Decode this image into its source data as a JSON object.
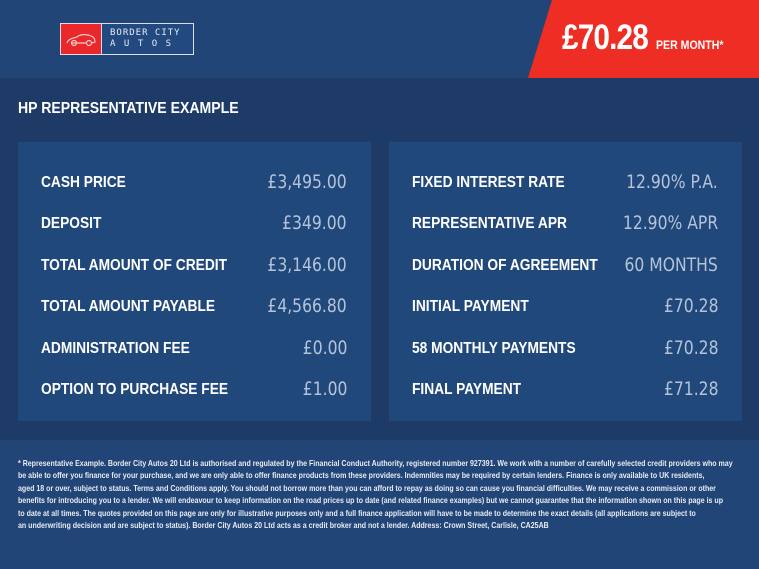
{
  "brand": {
    "line1": "BORDER CITY",
    "line2": "AUTOS",
    "logo_icon": "car-icon",
    "colors": {
      "red": "#e8282b",
      "blue": "#234a80"
    }
  },
  "headline": {
    "price": "£70.28",
    "suffix": "PER MONTH*",
    "color": "#ee2e24"
  },
  "section_title": "HP REPRESENTATIVE EXAMPLE",
  "left_panel": [
    {
      "label": "CASH PRICE",
      "value": "£3,495.00"
    },
    {
      "label": "DEPOSIT",
      "value": "£349.00"
    },
    {
      "label": "TOTAL AMOUNT OF CREDIT",
      "value": "£3,146.00"
    },
    {
      "label": "TOTAL AMOUNT PAYABLE",
      "value": "£4,566.80"
    },
    {
      "label": "ADMINISTRATION FEE",
      "value": "£0.00"
    },
    {
      "label": "OPTION TO PURCHASE FEE",
      "value": "£1.00"
    }
  ],
  "right_panel": [
    {
      "label": "FIXED INTEREST RATE",
      "value": "12.90% P.A."
    },
    {
      "label": "REPRESENTATIVE APR",
      "value": "12.90% APR"
    },
    {
      "label": "DURATION OF AGREEMENT",
      "value": "60 MONTHS"
    },
    {
      "label": "INITIAL PAYMENT",
      "value": "£70.28"
    },
    {
      "label": "58 MONTHLY PAYMENTS",
      "value": "£70.28"
    },
    {
      "label": "FINAL PAYMENT",
      "value": "£71.28"
    }
  ],
  "disclaimer": [
    "* Representative Example. Border City Autos 20 Ltd is authorised and regulated by the Financial Conduct Authority, registered number 927391. We work with a number of carefully selected credit providers who may",
    "be able to offer you finance for your purchase, and we are only able to offer finance products from these providers. Indemnities may be required by certain lenders. Finance is only available to UK residents,",
    "aged 18 or over, subject to status. Terms and Conditions apply. You should not borrow more than you can afford to repay as doing so can cause you financial difficulties. We may receive a commission or other",
    "benefits for introducing you to a lender. We will endeavour to keep information on the road prices up to date (and related finance examples) but we cannot guarantee that the information shown on this page is up",
    "to date at all times. The quotes provided on this page are only for illustrative purposes only and a full finance application will have to be made to determine the exact details (all applications are subject to",
    "an underwriting decision and are subject to status). Border City Autos 20 Ltd acts as a credit broker and not a lender. Address: Crown Street, Carlisle, CA25AB"
  ]
}
